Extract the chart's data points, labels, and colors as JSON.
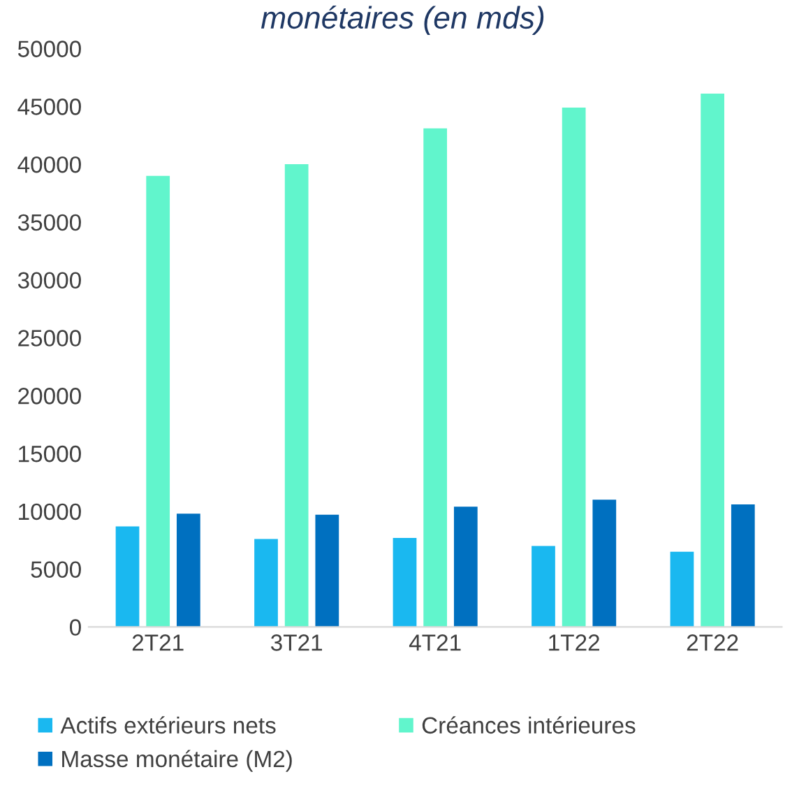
{
  "chart_data": {
    "type": "bar",
    "title": "monétaires (en mds)",
    "categories": [
      "2T21",
      "3T21",
      "4T21",
      "1T22",
      "2T22"
    ],
    "series": [
      {
        "name": "Actifs extérieurs nets",
        "color": "#1ab8f0",
        "values": [
          8700,
          7600,
          7700,
          7000,
          6500
        ]
      },
      {
        "name": "Créances intérieures",
        "color": "#61f5cc",
        "values": [
          39000,
          40000,
          43100,
          44900,
          46100
        ]
      },
      {
        "name": "Masse monétaire (M2)",
        "color": "#0070c0",
        "values": [
          9800,
          9700,
          10400,
          11000,
          10600
        ]
      }
    ],
    "ylim": [
      0,
      50000
    ],
    "yticks": [
      0,
      5000,
      10000,
      15000,
      20000,
      25000,
      30000,
      35000,
      40000,
      45000,
      50000
    ],
    "grid": false,
    "legend": "bottom"
  }
}
